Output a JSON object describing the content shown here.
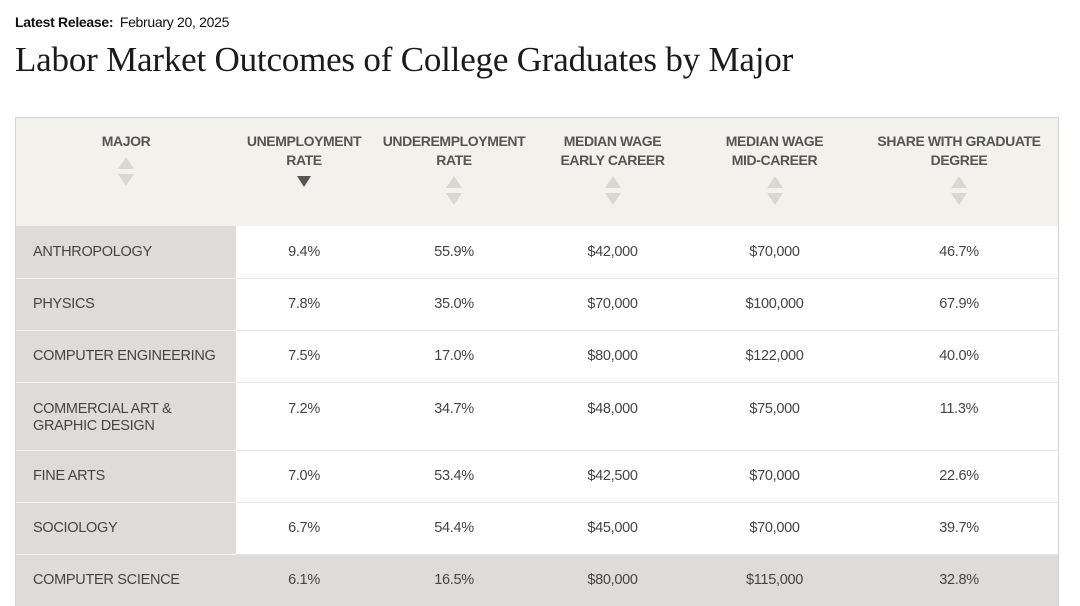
{
  "release": {
    "label": "Latest Release:",
    "date": "February 20, 2025"
  },
  "page_title": "Labor Market Outcomes of College Graduates by Major",
  "table": {
    "columns": [
      {
        "key": "major",
        "label": "MAJOR",
        "sort": "none"
      },
      {
        "key": "unemployment",
        "label": "UNEMPLOYMENT\nRATE",
        "sort": "descending"
      },
      {
        "key": "underemployment",
        "label": "UNDEREMPLOYMENT\nRATE",
        "sort": "none"
      },
      {
        "key": "wage_early",
        "label": "MEDIAN WAGE\nEARLY CAREER",
        "sort": "none"
      },
      {
        "key": "wage_mid",
        "label": "MEDIAN WAGE\nMID-CAREER",
        "sort": "none"
      },
      {
        "key": "grad_degree",
        "label": "SHARE WITH GRADUATE\nDEGREE",
        "sort": "none"
      }
    ],
    "rows": [
      {
        "major": "ANTHROPOLOGY",
        "unemployment": "9.4%",
        "underemployment": "55.9%",
        "wage_early": "$42,000",
        "wage_mid": "$70,000",
        "grad_degree": "46.7%",
        "highlight": false
      },
      {
        "major": "PHYSICS",
        "unemployment": "7.8%",
        "underemployment": "35.0%",
        "wage_early": "$70,000",
        "wage_mid": "$100,000",
        "grad_degree": "67.9%",
        "highlight": false
      },
      {
        "major": "COMPUTER ENGINEERING",
        "unemployment": "7.5%",
        "underemployment": "17.0%",
        "wage_early": "$80,000",
        "wage_mid": "$122,000",
        "grad_degree": "40.0%",
        "highlight": false
      },
      {
        "major": "COMMERCIAL ART &\nGRAPHIC DESIGN",
        "unemployment": "7.2%",
        "underemployment": "34.7%",
        "wage_early": "$48,000",
        "wage_mid": "$75,000",
        "grad_degree": "11.3%",
        "highlight": false
      },
      {
        "major": "FINE ARTS",
        "unemployment": "7.0%",
        "underemployment": "53.4%",
        "wage_early": "$42,500",
        "wage_mid": "$70,000",
        "grad_degree": "22.6%",
        "highlight": false
      },
      {
        "major": "SOCIOLOGY",
        "unemployment": "6.7%",
        "underemployment": "54.4%",
        "wage_early": "$45,000",
        "wage_mid": "$70,000",
        "grad_degree": "39.7%",
        "highlight": false
      },
      {
        "major": "COMPUTER SCIENCE",
        "unemployment": "6.1%",
        "underemployment": "16.5%",
        "wage_early": "$80,000",
        "wage_mid": "$115,000",
        "grad_degree": "32.8%",
        "highlight": true
      }
    ]
  },
  "icons": {
    "sort_up": "sort-ascending-icon",
    "sort_down": "sort-descending-icon"
  },
  "colors": {
    "header_bg": "#f2f1ec",
    "major_cell_bg": "#dddcd8",
    "highlight_row_bg": "#dddcd8",
    "sort_arrow_inactive": "#d8d7d2",
    "sort_arrow_active": "#555555"
  }
}
